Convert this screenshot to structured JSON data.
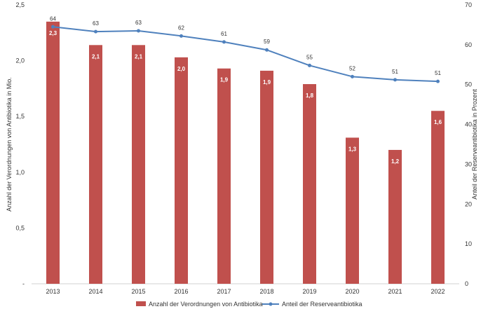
{
  "chart_data": {
    "type": "bar",
    "categories": [
      "2013",
      "2014",
      "2015",
      "2016",
      "2017",
      "2018",
      "2019",
      "2020",
      "2021",
      "2022"
    ],
    "series": [
      {
        "name": "Anzahl der Verordnungen von Antibiotika",
        "type": "bar",
        "axis": "left",
        "values": [
          2.35,
          2.14,
          2.14,
          2.03,
          1.93,
          1.91,
          1.79,
          1.31,
          1.2,
          1.55
        ],
        "labels": [
          "2,3",
          "2,1",
          "2,1",
          "2,0",
          "1,9",
          "1,9",
          "1,8",
          "1,3",
          "1,2",
          "1,6"
        ],
        "color": "#c0504d"
      },
      {
        "name": "Anteil der Reserveantibiotika",
        "type": "line",
        "axis": "right",
        "values": [
          64.5,
          63.3,
          63.5,
          62.2,
          60.7,
          58.7,
          54.8,
          52.0,
          51.2,
          50.8
        ],
        "labels": [
          "64",
          "63",
          "63",
          "62",
          "61",
          "59",
          "55",
          "52",
          "51",
          "51"
        ],
        "color": "#4f81bd"
      }
    ],
    "y_left": {
      "label": "Anzahl der Verordnungen von Antibiotika in Mio.",
      "ylim": [
        0,
        2.5
      ],
      "ticks": [
        0,
        0.5,
        1.0,
        1.5,
        2.0,
        2.5
      ],
      "tick_labels": [
        "-",
        "0,5",
        "1,0",
        "1,5",
        "2,0",
        "2,5"
      ]
    },
    "y_right": {
      "label": "Anteil der Reserveantibiotika in Prozent",
      "ylim": [
        0,
        70
      ],
      "ticks": [
        0,
        10,
        20,
        30,
        40,
        50,
        60,
        70
      ],
      "tick_labels": [
        "0",
        "10",
        "20",
        "30",
        "40",
        "50",
        "60",
        "70"
      ]
    },
    "grid": false,
    "legend": "bottom-center"
  }
}
